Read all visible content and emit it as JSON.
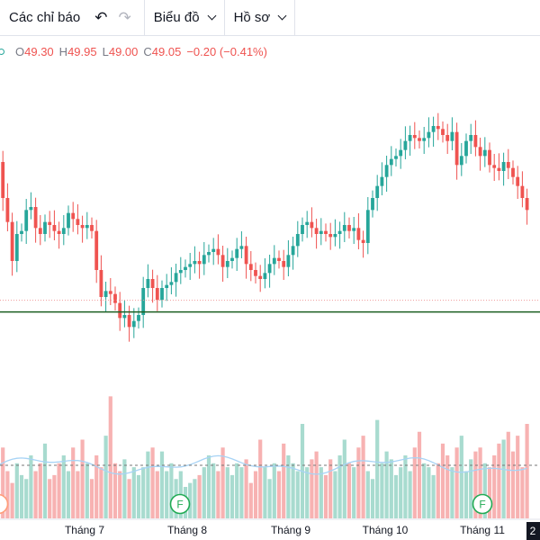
{
  "toolbar": {
    "indicators_label": "Các chỉ báo",
    "undo_icon": "undo-icon",
    "redo_icon": "redo-icon",
    "chart_menu_label": "Biểu đồ",
    "profile_menu_label": "Hồ sơ"
  },
  "legend": {
    "open_key": "O",
    "open_value": "49.30",
    "high_key": "H",
    "high_value": "49.95",
    "low_key": "L",
    "low_value": "49.00",
    "close_key": "C",
    "close_value": "49.05",
    "change": "−0.20 (−0.41%)"
  },
  "colors": {
    "up": "#26a69a",
    "down": "#ef5350",
    "support_line": "#1b5e20",
    "volume_ma": "#a7d3f5"
  },
  "chart_data": {
    "type": "candlestick",
    "x_tick_labels": [
      "Tháng 7",
      "Tháng 8",
      "Tháng 9",
      "Tháng 10",
      "Tháng 11",
      "2"
    ],
    "event_markers": [
      {
        "label": "F",
        "near": "Tháng 8"
      },
      {
        "label": "F",
        "near": "Tháng 11"
      }
    ],
    "support_level": 44.6,
    "closes": [
      49.6,
      48.4,
      47.6,
      46.3,
      47.2,
      47.3,
      48.0,
      48.1,
      47.4,
      47.2,
      47.6,
      47.5,
      47.3,
      47.2,
      47.4,
      47.9,
      47.7,
      47.5,
      47.4,
      47.5,
      47.3,
      46.0,
      45.1,
      45.3,
      45.2,
      44.9,
      44.4,
      44.5,
      44.1,
      44.3,
      44.5,
      45.4,
      45.7,
      45.4,
      45.0,
      45.4,
      45.5,
      45.6,
      45.9,
      46.0,
      46.1,
      46.2,
      46.3,
      46.2,
      46.5,
      46.6,
      46.7,
      46.5,
      46.1,
      46.3,
      46.4,
      46.7,
      46.8,
      46.2,
      46.0,
      45.8,
      45.7,
      45.9,
      46.2,
      46.4,
      46.3,
      46.1,
      46.5,
      46.8,
      47.2,
      47.5,
      47.6,
      47.4,
      47.2,
      47.3,
      47.2,
      47.1,
      47.2,
      47.3,
      47.5,
      47.3,
      47.4,
      47.0,
      46.9,
      48.0,
      48.4,
      48.8,
      49.1,
      49.5,
      49.7,
      49.8,
      50.0,
      50.3,
      50.5,
      50.4,
      50.3,
      50.4,
      50.6,
      50.8,
      50.7,
      50.5,
      50.3,
      50.6,
      49.5,
      49.8,
      50.3,
      50.5,
      50.1,
      49.8,
      50.0,
      49.5,
      49.4,
      49.3,
      49.6,
      49.4,
      49.1,
      48.8,
      48.4,
      48.0
    ],
    "volumes": [
      13,
      18,
      12,
      9,
      14,
      11,
      10,
      16,
      12,
      14,
      19,
      10,
      11,
      14,
      16,
      12,
      18,
      12,
      20,
      14,
      10,
      16,
      13,
      21,
      31,
      14,
      12,
      15,
      10,
      13,
      11,
      13,
      17,
      18,
      12,
      17,
      12,
      14,
      10,
      12,
      8,
      9,
      10,
      11,
      13,
      16,
      14,
      12,
      18,
      13,
      11,
      14,
      13,
      15,
      9,
      12,
      20,
      13,
      10,
      14,
      12,
      19,
      16,
      14,
      12,
      24,
      13,
      15,
      17,
      13,
      11,
      15,
      12,
      16,
      20,
      14,
      13,
      18,
      21,
      12,
      10,
      25,
      14,
      17,
      15,
      11,
      13,
      16,
      12,
      18,
      22,
      14,
      13,
      11,
      14,
      19,
      16,
      13,
      18,
      21,
      12,
      15,
      17,
      18,
      14,
      13,
      16,
      19,
      20,
      22,
      17,
      21,
      13,
      24
    ],
    "volume_ma": 13.5
  }
}
